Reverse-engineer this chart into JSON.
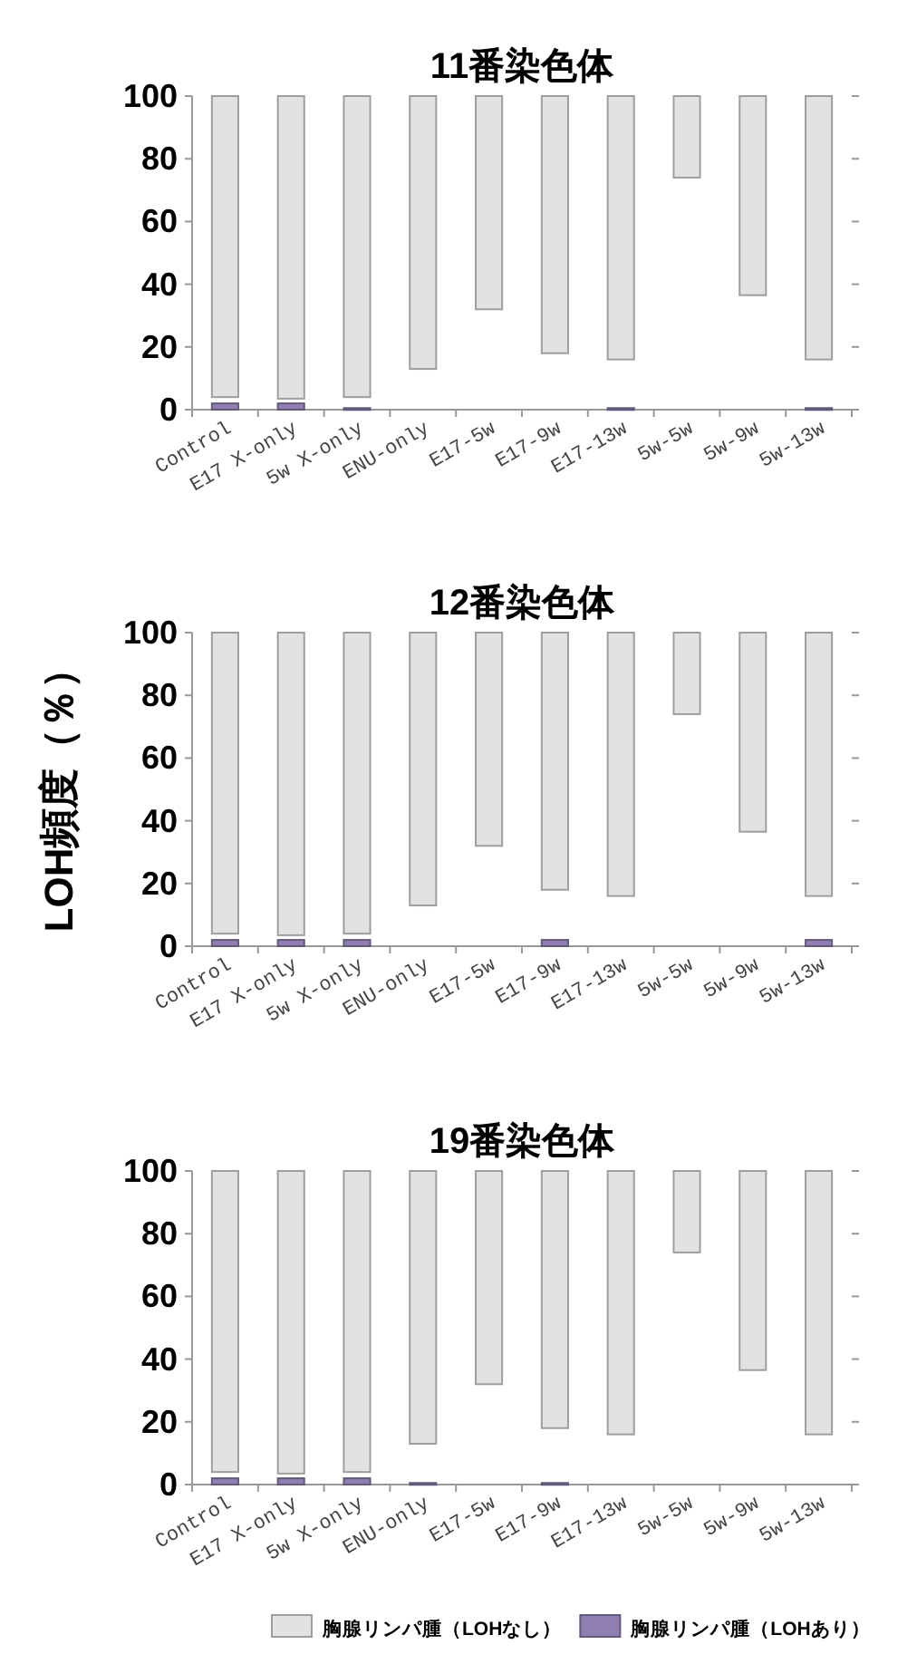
{
  "chart_data": [
    {
      "type": "bar",
      "title": "11番染色体",
      "categories": [
        "Control",
        "E17 X-only",
        "5w X-only",
        "ENU-only",
        "E17-5w",
        "E17-9w",
        "E17-13w",
        "5w-5w",
        "5w-9w",
        "5w-13w"
      ],
      "series": [
        {
          "color": "#e2e2e2",
          "base": [
            4,
            3.5,
            4,
            13,
            32,
            18,
            16,
            74,
            36.5,
            16
          ],
          "values": [
            96,
            96.5,
            96,
            87,
            68,
            82,
            84,
            26,
            63.5,
            84
          ]
        },
        {
          "color": "#8e7fb0",
          "values": [
            2,
            2,
            0.5,
            null,
            null,
            null,
            0.5,
            null,
            null,
            0.5
          ]
        }
      ],
      "ylim": [
        0,
        100
      ],
      "yticks": [
        0,
        20,
        40,
        60,
        80,
        100
      ],
      "grid": false
    },
    {
      "type": "bar",
      "title": "12番染色体",
      "ylabel": "LOH頻度（％）",
      "categories": [
        "Control",
        "E17 X-only",
        "5w X-only",
        "ENU-only",
        "E17-5w",
        "E17-9w",
        "E17-13w",
        "5w-5w",
        "5w-9w",
        "5w-13w"
      ],
      "series": [
        {
          "color": "#e2e2e2",
          "base": [
            4,
            3.5,
            4,
            13,
            32,
            18,
            16,
            74,
            36.5,
            16
          ],
          "values": [
            96,
            96.5,
            96,
            87,
            68,
            82,
            84,
            26,
            63.5,
            84
          ]
        },
        {
          "color": "#8e7fb0",
          "values": [
            2,
            2,
            2,
            null,
            null,
            2,
            null,
            null,
            null,
            2
          ]
        }
      ],
      "ylim": [
        0,
        100
      ],
      "yticks": [
        0,
        20,
        40,
        60,
        80,
        100
      ],
      "grid": false
    },
    {
      "type": "bar",
      "title": "19番染色体",
      "categories": [
        "Control",
        "E17 X-only",
        "5w X-only",
        "ENU-only",
        "E17-5w",
        "E17-9w",
        "E17-13w",
        "5w-5w",
        "5w-9w",
        "5w-13w"
      ],
      "series": [
        {
          "name": "胸腺リンパ腫（LOHなし）",
          "color": "#e2e2e2",
          "base": [
            4,
            3.5,
            4,
            13,
            32,
            18,
            16,
            74,
            36.5,
            16
          ],
          "values": [
            96,
            96.5,
            96,
            87,
            68,
            82,
            84,
            26,
            63.5,
            84
          ]
        },
        {
          "name": "胸腺リンパ腫（LOHあり）",
          "color": "#8e7fb0",
          "values": [
            2,
            2,
            2,
            0.5,
            null,
            0.5,
            null,
            null,
            null,
            null
          ]
        }
      ],
      "ylim": [
        0,
        100
      ],
      "yticks": [
        0,
        20,
        40,
        60,
        80,
        100
      ],
      "grid": false,
      "legend": "bottom"
    }
  ]
}
